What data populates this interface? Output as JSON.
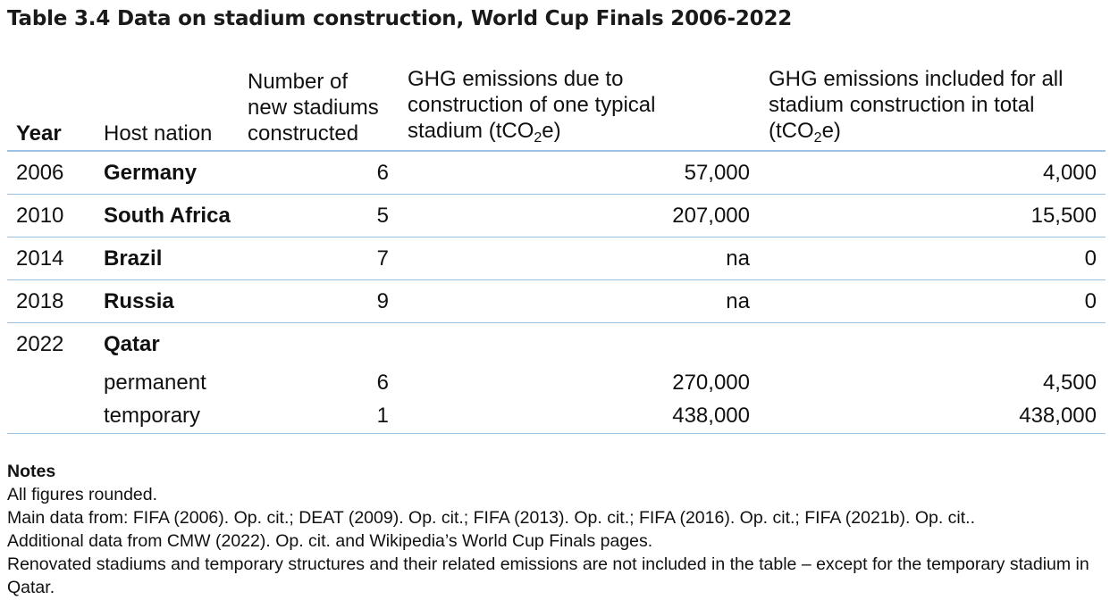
{
  "title_prefix": "Table 3.4",
  "title_text": "Data on stadium construction, World Cup Finals 2006-2022",
  "headers": {
    "year": "Year",
    "host_nation": "Host nation",
    "num_line1": "Number of",
    "num_line2": "new stadiums",
    "num_line3": "constructed",
    "ghg1_line1": "GHG emissions due to",
    "ghg1_line2": "construction of one typical",
    "ghg1_line3_pre": "stadium (tCO",
    "ghg1_line3_sub": "2",
    "ghg1_line3_post": "e)",
    "ghg2_line1": "GHG emissions included for all",
    "ghg2_line2": "stadium construction in total",
    "ghg2_line3_pre": "(tCO",
    "ghg2_line3_sub": "2",
    "ghg2_line3_post": "e)"
  },
  "rows": [
    {
      "year": "2006",
      "nation": "Germany",
      "num": "6",
      "ghg_one": "57,000",
      "ghg_total": "4,000"
    },
    {
      "year": "2010",
      "nation": "South Africa",
      "num": "5",
      "ghg_one": "207,000",
      "ghg_total": "15,500"
    },
    {
      "year": "2014",
      "nation": "Brazil",
      "num": "7",
      "ghg_one": "na",
      "ghg_total": "0"
    },
    {
      "year": "2018",
      "nation": "Russia",
      "num": "9",
      "ghg_one": "na",
      "ghg_total": "0"
    }
  ],
  "qatar": {
    "year": "2022",
    "nation": "Qatar",
    "sub_rows": [
      {
        "label": "permanent",
        "num": "6",
        "ghg_one": "270,000",
        "ghg_total": "4,500"
      },
      {
        "label": "temporary",
        "num": "1",
        "ghg_one": "438,000",
        "ghg_total": "438,000"
      }
    ]
  },
  "notes": {
    "heading": "Notes",
    "lines": [
      "All figures rounded.",
      "Main data from: FIFA (2006). Op. cit.; DEAT (2009). Op. cit.; FIFA (2013). Op. cit.; FIFA (2016). Op. cit.; FIFA (2021b). Op. cit..",
      "Additional data from CMW (2022). Op. cit. and Wikipedia’s World Cup Finals pages.",
      "Renovated stadiums and temporary structures and their related emissions are not included in the table – except for the temporary stadium in Qatar."
    ]
  },
  "colors": {
    "rule": "#9cc3e6",
    "text": "#111111"
  }
}
